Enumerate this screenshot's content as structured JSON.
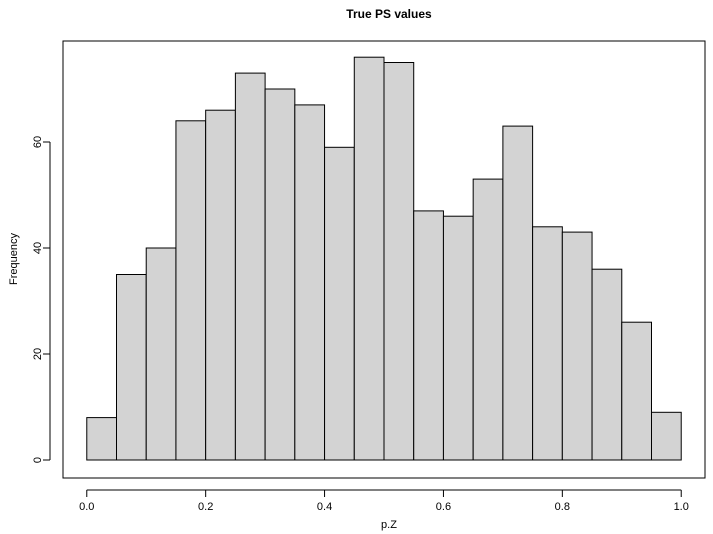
{
  "chart_data": {
    "type": "bar",
    "subtype": "histogram",
    "title": "True PS values",
    "xlabel": "p.Z",
    "ylabel": "Frequency",
    "bin_edges": [
      0.0,
      0.05,
      0.1,
      0.15,
      0.2,
      0.25,
      0.3,
      0.35,
      0.4,
      0.45,
      0.5,
      0.55,
      0.6,
      0.65,
      0.7,
      0.75,
      0.8,
      0.85,
      0.9,
      0.95,
      1.0
    ],
    "values": [
      8,
      35,
      40,
      64,
      66,
      73,
      70,
      67,
      59,
      76,
      75,
      47,
      46,
      53,
      63,
      44,
      43,
      36,
      26,
      9
    ],
    "xlim": [
      -0.04,
      1.04
    ],
    "ylim": [
      0,
      80
    ],
    "x_ticks": [
      "0.0",
      "0.2",
      "0.4",
      "0.6",
      "0.8",
      "1.0"
    ],
    "y_ticks": [
      "0",
      "20",
      "40",
      "60"
    ],
    "bar_fill": "#d3d3d3",
    "bar_stroke": "#000000",
    "grid": false
  }
}
